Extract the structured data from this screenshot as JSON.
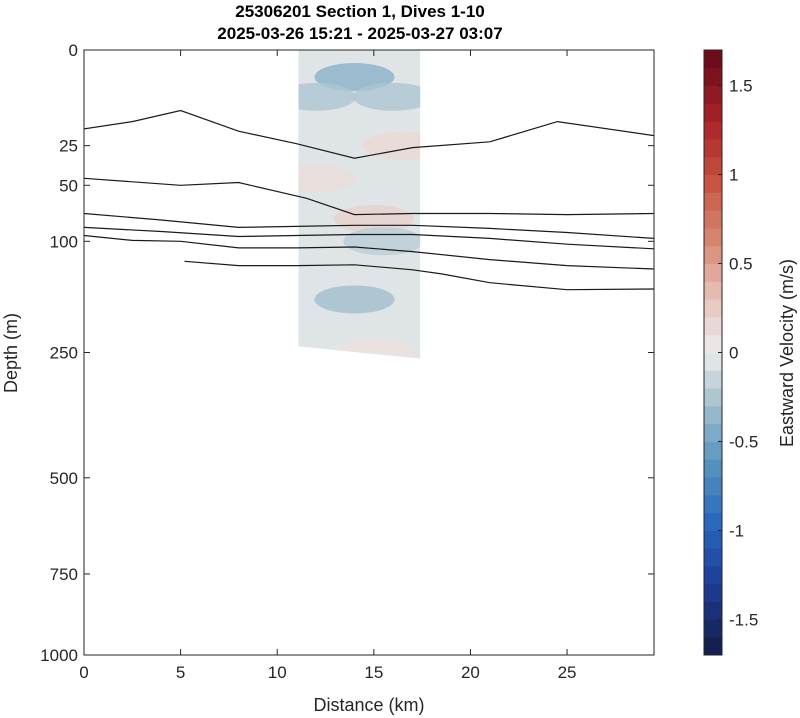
{
  "chart_data": {
    "type": "heatmap",
    "title": "25306201 Section 1, Dives 1-10",
    "subtitle": "2025-03-26 15:21 - 2025-03-27 03:07",
    "xlabel": "Distance (km)",
    "ylabel": "Depth (m)",
    "xlim": [
      0,
      29.5
    ],
    "ylim": [
      0,
      1000
    ],
    "y_scale": "sqrt",
    "xticks": [
      "0",
      "5",
      "10",
      "15",
      "20",
      "25"
    ],
    "yticks": [
      "0",
      "25",
      "50",
      "100",
      "250",
      "500",
      "750",
      "1000"
    ],
    "colorbar": {
      "label": "Eastward Velocity (m/s)",
      "range": [
        -1.7,
        1.7
      ],
      "ticks": [
        "1.5",
        "1",
        "0.5",
        "0",
        "-0.5",
        "-1",
        "-1.5"
      ]
    },
    "velocity_field": {
      "x_km": [
        11.1,
        17.4
      ],
      "depth_m": [
        0,
        260
      ],
      "mean_value": -0.05,
      "patches": [
        {
          "x": 14.0,
          "depth": 2,
          "value": -0.4
        },
        {
          "x": 12.0,
          "depth": 6,
          "value": -0.25
        },
        {
          "x": 16.0,
          "depth": 6,
          "value": -0.25
        },
        {
          "x": 16.5,
          "depth": 25,
          "value": 0.15
        },
        {
          "x": 12.0,
          "depth": 45,
          "value": 0.12
        },
        {
          "x": 15.0,
          "depth": 78,
          "value": 0.2
        },
        {
          "x": 15.5,
          "depth": 100,
          "value": -0.2
        },
        {
          "x": 14.0,
          "depth": 170,
          "value": -0.3
        },
        {
          "x": 15.0,
          "depth": 250,
          "value": 0.08
        }
      ]
    },
    "isopycnals": [
      {
        "x": [
          0,
          2.5,
          5,
          8,
          11,
          14,
          17,
          21,
          24.5,
          29.5
        ],
        "depth": [
          17,
          14,
          10,
          18,
          24,
          32,
          26,
          23,
          14,
          20
        ]
      },
      {
        "x": [
          0,
          5,
          8,
          11.5,
          14,
          17,
          21,
          25,
          29.5
        ],
        "depth": [
          45,
          50,
          48,
          60,
          74,
          73,
          73,
          74,
          73
        ]
      },
      {
        "x": [
          0,
          4,
          8,
          11,
          14,
          17,
          21,
          25,
          29.5
        ],
        "depth": [
          73,
          79,
          86,
          85,
          84,
          84,
          87,
          91,
          97
        ]
      },
      {
        "x": [
          0,
          4,
          8,
          11,
          14,
          17,
          21,
          25,
          29.5
        ],
        "depth": [
          86,
          90,
          95,
          94,
          93,
          93,
          97,
          103,
          108
        ]
      },
      {
        "x": [
          0,
          2.5,
          5,
          8,
          11,
          14,
          17,
          21,
          25,
          29.5
        ],
        "depth": [
          94,
          99,
          100,
          107,
          107,
          106,
          111,
          120,
          127,
          131
        ]
      },
      {
        "x": [
          5.2,
          8,
          11,
          14,
          17,
          18.5,
          21,
          25,
          29.5
        ],
        "depth": [
          122,
          127,
          127,
          126,
          132,
          137,
          148,
          157,
          156
        ]
      }
    ]
  }
}
